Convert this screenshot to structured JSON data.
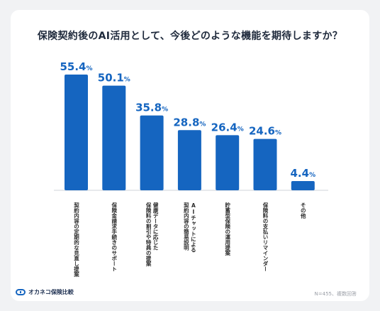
{
  "chart_data": {
    "type": "bar",
    "title": "保険契約後のAI活用として、今後どのような機能を期待しますか？",
    "categories": [
      "契約内容の定期的な見直し提案",
      "保険金請求手続きのサポート",
      "健康データに応じた\n保険料の割引や特典の提案",
      "AIチャットによる\n契約内容の簡易説明",
      "貯蓄型保険の運用提案",
      "保険料の支払いリマインダー",
      "その他"
    ],
    "values": [
      55.4,
      50.1,
      35.8,
      28.8,
      26.4,
      24.6,
      4.4
    ],
    "value_labels": [
      "55.4",
      "50.1",
      "35.8",
      "28.8",
      "26.4",
      "24.6",
      "4.4"
    ],
    "unit": "%",
    "ylim": [
      0,
      55.4
    ],
    "bar_color": "#1565c0",
    "grid": false
  },
  "footer": {
    "logo_text": "オカネコ保険比較",
    "note": "N=455、複数回答"
  }
}
